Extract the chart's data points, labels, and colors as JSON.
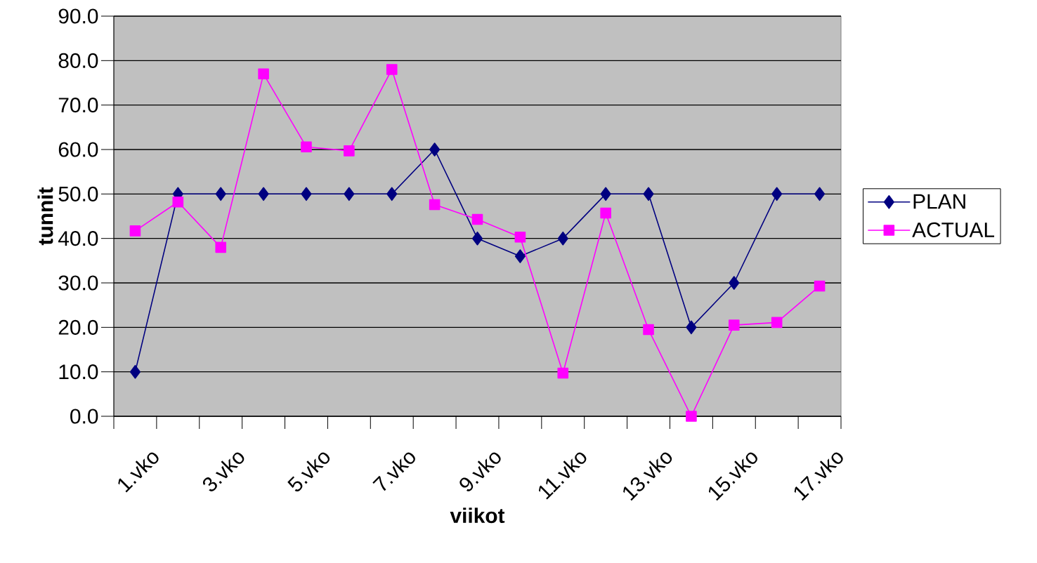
{
  "chart_data": {
    "type": "line",
    "xlabel": "viikot",
    "ylabel": "tunnit",
    "categories": [
      "1.vko",
      null,
      "3.vko",
      null,
      "5.vko",
      null,
      "7.vko",
      null,
      "9.vko",
      null,
      "11.vko",
      null,
      "13.vko",
      null,
      "15.vko",
      null,
      "17.vko"
    ],
    "series": [
      {
        "name": "PLAN",
        "color": "#000080",
        "marker": "diamond",
        "values": [
          10,
          50,
          50,
          50,
          50,
          50,
          50,
          60,
          40,
          36,
          40,
          50,
          50,
          20,
          30,
          50,
          50
        ]
      },
      {
        "name": "ACTUAL",
        "color": "#ff00ff",
        "marker": "square",
        "values": [
          41.7,
          48.2,
          38,
          77,
          60.6,
          59.7,
          78,
          47.6,
          44.3,
          40.3,
          9.7,
          45.7,
          19.5,
          0,
          20.5,
          21.1,
          29.3
        ]
      }
    ],
    "ylim": [
      0,
      90
    ],
    "yticks": [
      {
        "value": 0,
        "label": "0.0"
      },
      {
        "value": 10,
        "label": "10.0"
      },
      {
        "value": 20,
        "label": "20.0"
      },
      {
        "value": 30,
        "label": "30.0"
      },
      {
        "value": 40,
        "label": "40.0"
      },
      {
        "value": 50,
        "label": "50.0"
      },
      {
        "value": 60,
        "label": "60.0"
      },
      {
        "value": 70,
        "label": "70.0"
      },
      {
        "value": 80,
        "label": "80.0"
      },
      {
        "value": 90,
        "label": "90.0"
      }
    ],
    "grid": "y",
    "legend": "right",
    "line_style": "solid"
  }
}
